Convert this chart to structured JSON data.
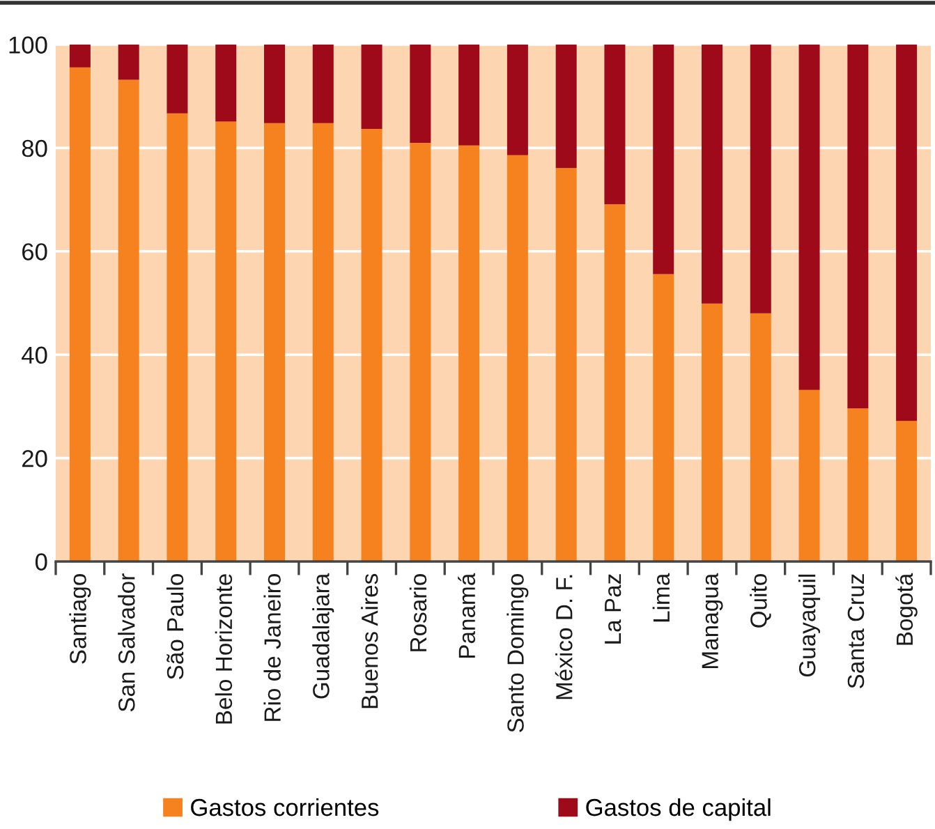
{
  "chart_data": {
    "type": "bar",
    "stacked": true,
    "categories": [
      "Santiago",
      "San Salvador",
      "São Paulo",
      "Belo Horizonte",
      "Rio de Janeiro",
      "Guadalajara",
      "Buenos Aires",
      "Rosario",
      "Panamá",
      "Santo Domingo",
      "México D. F.",
      "La Paz",
      "Lima",
      "Managua",
      "Quito",
      "Guayaquil",
      "Santa Cruz",
      "Bogotá"
    ],
    "series": [
      {
        "name": "Gastos corrientes",
        "color": "#f5821f",
        "values": [
          95.6,
          93.2,
          86.7,
          85.1,
          84.8,
          84.8,
          83.7,
          81.0,
          80.5,
          78.6,
          76.1,
          69.1,
          55.6,
          49.9,
          48.0,
          33.2,
          29.6,
          27.2
        ]
      },
      {
        "name": "Gastos de capital",
        "color": "#9e0a1a",
        "values": [
          4.4,
          6.8,
          13.3,
          14.9,
          15.2,
          15.2,
          16.3,
          19.0,
          19.5,
          21.4,
          23.9,
          30.9,
          44.4,
          50.1,
          52.0,
          66.8,
          70.4,
          72.8
        ]
      }
    ],
    "ylim": [
      0,
      100
    ],
    "yticks": [
      0,
      20,
      40,
      60,
      80,
      100
    ],
    "grid": "y",
    "legend": "bottom"
  }
}
